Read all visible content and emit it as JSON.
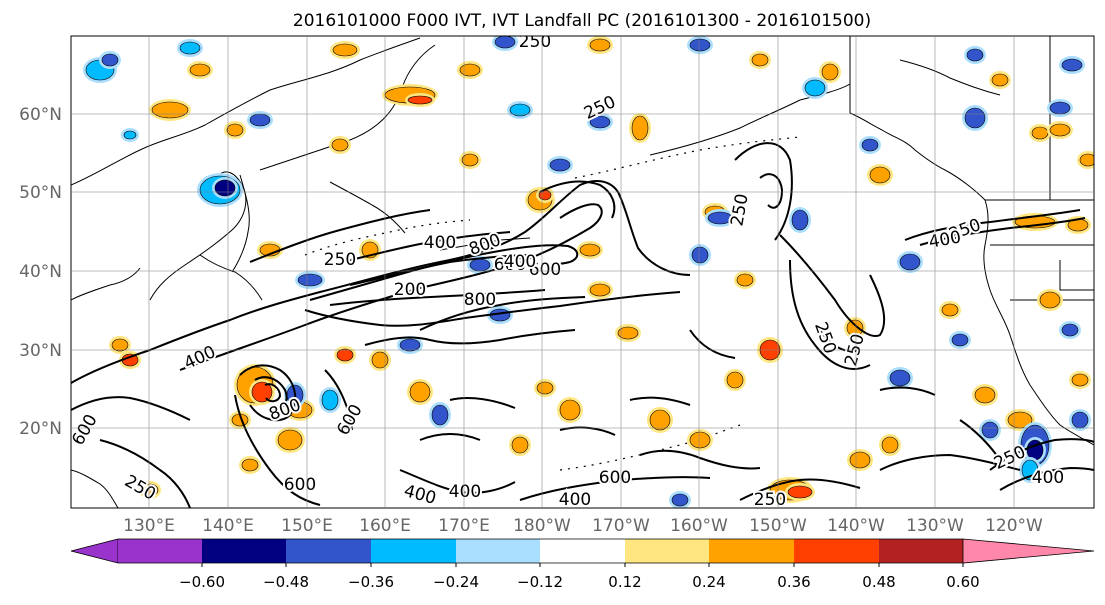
{
  "title": "2016101000 F000 IVT, IVT Landfall PC (2016101300 - 2016101500)",
  "axes": {
    "lat_labels": [
      "60°N",
      "50°N",
      "40°N",
      "30°N",
      "20°N"
    ],
    "lon_labels": [
      "130°E",
      "140°E",
      "150°E",
      "160°E",
      "170°E",
      "180°W",
      "170°W",
      "160°W",
      "150°W",
      "140°W",
      "130°W",
      "120°W"
    ]
  },
  "contour_labels": [
    "250",
    "250",
    "250",
    "250",
    "400",
    "800",
    "600",
    "600",
    "400",
    "200",
    "800",
    "250",
    "400",
    "250",
    "250",
    "400",
    "800",
    "600",
    "600",
    "250",
    "600",
    "400",
    "400",
    "400",
    "600",
    "250",
    "250",
    "400"
  ],
  "colorbar": {
    "ticks": [
      "−0.60",
      "−0.48",
      "−0.36",
      "−0.24",
      "−0.12",
      "0.12",
      "0.24",
      "0.36",
      "0.48",
      "0.60"
    ],
    "colors": [
      "#9933cc",
      "#000080",
      "#3355cc",
      "#00bbff",
      "#aadeff",
      "#ffffff",
      "#ffe680",
      "#ffa200",
      "#ff4000",
      "#b22222",
      "#ff88aa"
    ]
  }
}
